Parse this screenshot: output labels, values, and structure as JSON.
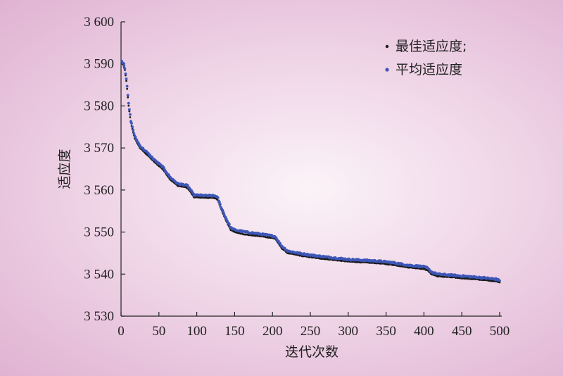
{
  "chart_data": {
    "type": "scatter",
    "title": "",
    "xlabel": "迭代次数",
    "ylabel": "适应度",
    "xlim": [
      0,
      500
    ],
    "ylim": [
      3530,
      3600
    ],
    "xticks": [
      0,
      50,
      100,
      150,
      200,
      250,
      300,
      350,
      400,
      450,
      500
    ],
    "yticks": [
      3530,
      3540,
      3550,
      3560,
      3570,
      3580,
      3590,
      3600
    ],
    "ytick_labels": [
      "3 530",
      "3 540",
      "3 550",
      "3 560",
      "3 570",
      "3 580",
      "3 590",
      "3 600"
    ],
    "xtick_labels": [
      "0",
      "50",
      "100",
      "150",
      "200",
      "250",
      "300",
      "350",
      "400",
      "450",
      "500"
    ],
    "grid": false,
    "legend_position": "top-right",
    "series": [
      {
        "name": "最佳适应度;",
        "color": "#1a1a1a",
        "keypoints": [
          [
            1,
            3590.2
          ],
          [
            3,
            3589.8
          ],
          [
            5,
            3588.5
          ],
          [
            7,
            3586
          ],
          [
            10,
            3580
          ],
          [
            13,
            3576
          ],
          [
            18,
            3572.3
          ],
          [
            25,
            3570
          ],
          [
            35,
            3568.3
          ],
          [
            45,
            3566.5
          ],
          [
            55,
            3565
          ],
          [
            65,
            3562.5
          ],
          [
            75,
            3561
          ],
          [
            85,
            3560.7
          ],
          [
            88,
            3560.4
          ],
          [
            92,
            3559.5
          ],
          [
            96,
            3558.3
          ],
          [
            110,
            3558.2
          ],
          [
            125,
            3558.1
          ],
          [
            128,
            3557.5
          ],
          [
            132,
            3555.5
          ],
          [
            138,
            3553
          ],
          [
            145,
            3550.5
          ],
          [
            150,
            3550
          ],
          [
            165,
            3549.4
          ],
          [
            185,
            3549
          ],
          [
            200,
            3548.6
          ],
          [
            204,
            3548.4
          ],
          [
            207,
            3547.5
          ],
          [
            212,
            3546.2
          ],
          [
            220,
            3545
          ],
          [
            240,
            3544.3
          ],
          [
            260,
            3543.8
          ],
          [
            280,
            3543.4
          ],
          [
            300,
            3543
          ],
          [
            320,
            3542.8
          ],
          [
            340,
            3542.6
          ],
          [
            360,
            3542.2
          ],
          [
            380,
            3541.6
          ],
          [
            398,
            3541.3
          ],
          [
            404,
            3541
          ],
          [
            410,
            3540
          ],
          [
            418,
            3539.5
          ],
          [
            440,
            3539.2
          ],
          [
            460,
            3538.9
          ],
          [
            480,
            3538.6
          ],
          [
            495,
            3538.3
          ],
          [
            500,
            3538.1
          ]
        ]
      },
      {
        "name": "平均适应度",
        "color": "#3d56b8",
        "keypoints": [
          [
            1,
            3590.6
          ],
          [
            3,
            3590.2
          ],
          [
            5,
            3589
          ],
          [
            7,
            3586.5
          ],
          [
            10,
            3580.5
          ],
          [
            13,
            3576.5
          ],
          [
            18,
            3572.8
          ],
          [
            25,
            3570.5
          ],
          [
            35,
            3568.8
          ],
          [
            45,
            3567
          ],
          [
            55,
            3565.5
          ],
          [
            65,
            3563
          ],
          [
            75,
            3561.5
          ],
          [
            85,
            3561.2
          ],
          [
            88,
            3561
          ],
          [
            92,
            3560
          ],
          [
            96,
            3558.8
          ],
          [
            110,
            3558.7
          ],
          [
            125,
            3558.6
          ],
          [
            128,
            3558
          ],
          [
            132,
            3556
          ],
          [
            138,
            3553.5
          ],
          [
            145,
            3551
          ],
          [
            150,
            3550.5
          ],
          [
            165,
            3550
          ],
          [
            185,
            3549.5
          ],
          [
            200,
            3549.1
          ],
          [
            204,
            3548.9
          ],
          [
            207,
            3548
          ],
          [
            212,
            3546.7
          ],
          [
            220,
            3545.5
          ],
          [
            240,
            3544.8
          ],
          [
            260,
            3544.3
          ],
          [
            280,
            3543.9
          ],
          [
            300,
            3543.5
          ],
          [
            320,
            3543.3
          ],
          [
            340,
            3543.1
          ],
          [
            360,
            3542.7
          ],
          [
            380,
            3542.1
          ],
          [
            398,
            3541.8
          ],
          [
            404,
            3541.5
          ],
          [
            410,
            3540.5
          ],
          [
            418,
            3540
          ],
          [
            440,
            3539.7
          ],
          [
            460,
            3539.4
          ],
          [
            480,
            3539.1
          ],
          [
            495,
            3538.8
          ],
          [
            500,
            3538.5
          ]
        ]
      }
    ]
  }
}
